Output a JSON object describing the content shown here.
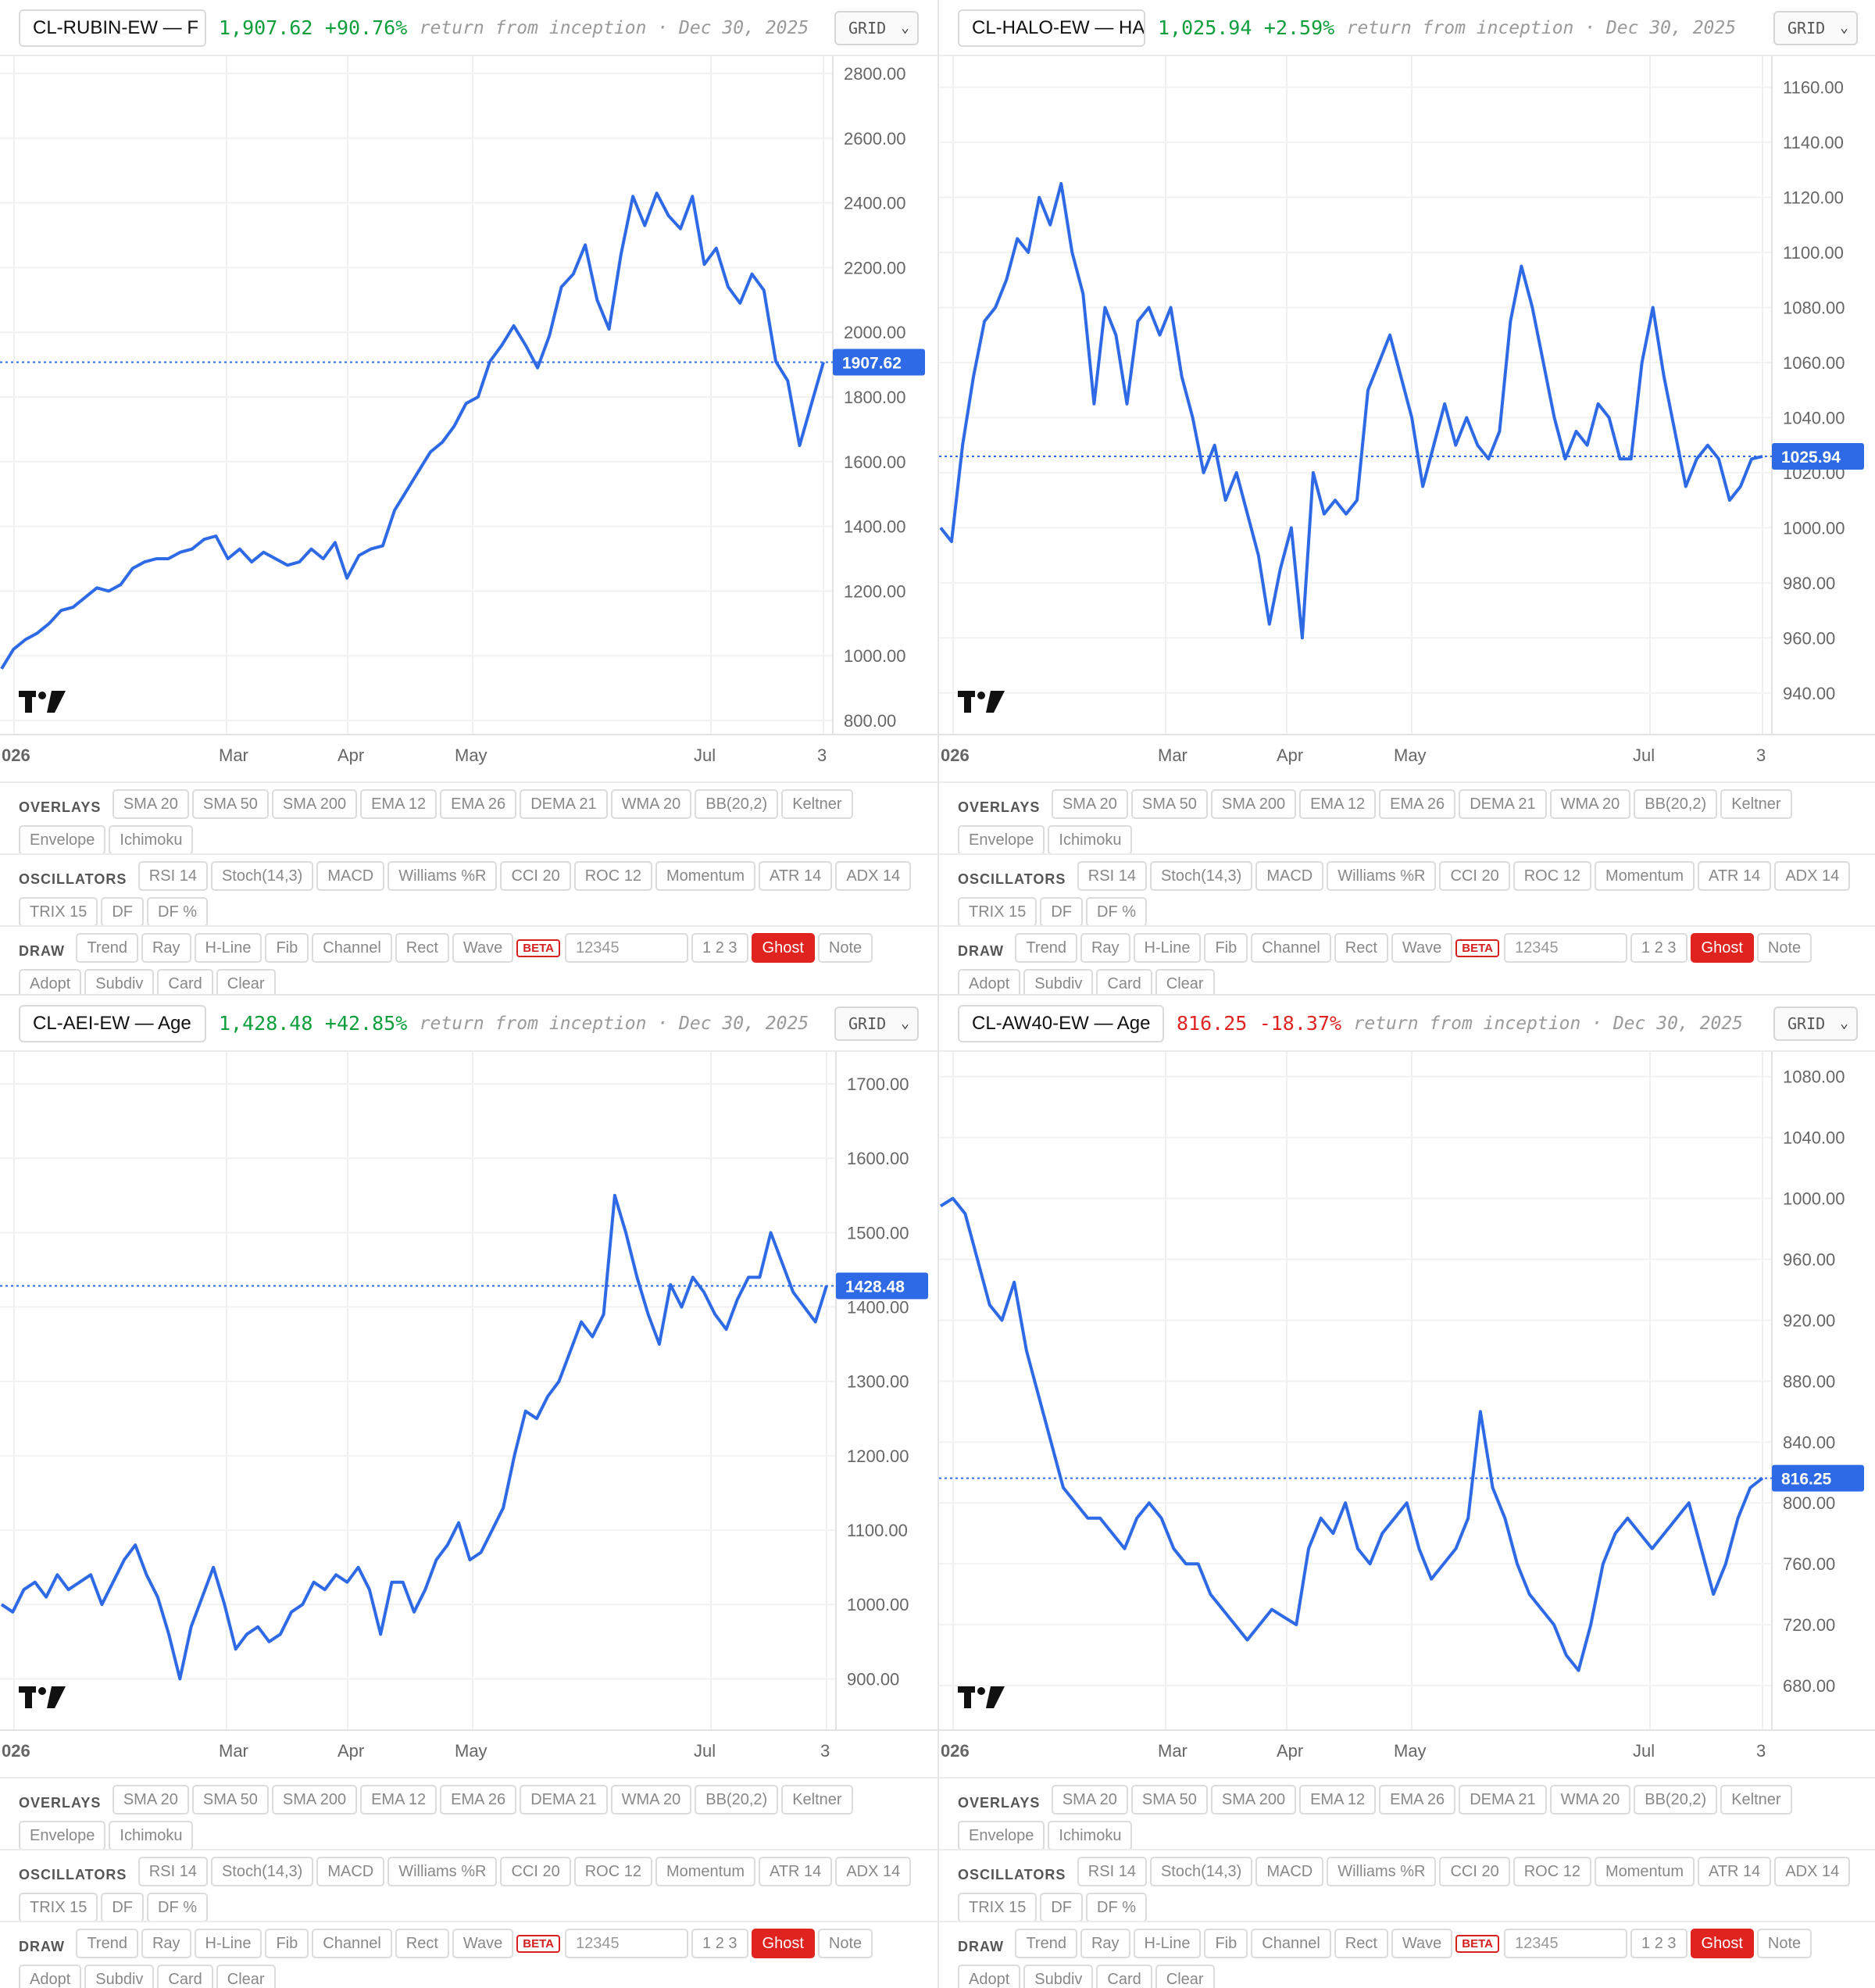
{
  "toolbars": {
    "overlays_label": "OVERLAYS",
    "overlays": [
      "SMA 20",
      "SMA 50",
      "SMA 200",
      "EMA 12",
      "EMA 26",
      "DEMA 21",
      "WMA 20",
      "BB(20,2)",
      "Keltner",
      "Envelope",
      "Ichimoku"
    ],
    "oscillators_label": "OSCILLATORS",
    "oscillators": [
      "RSI 14",
      "Stoch(14,3)",
      "MACD",
      "Williams %R",
      "CCI 20",
      "ROC 12",
      "Momentum",
      "ATR 14",
      "ADX 14",
      "TRIX 15",
      "DF",
      "DF %"
    ],
    "draw_label": "DRAW",
    "draw_before": [
      "Trend",
      "Ray",
      "H-Line",
      "Fib",
      "Channel",
      "Rect",
      "Wave"
    ],
    "beta": "BETA",
    "num_field": "12345",
    "draw_after": [
      "1 2 3",
      "Ghost",
      "Note",
      "Adopt",
      "Subdiv",
      "Card",
      "Clear"
    ],
    "active_draw": "Ghost"
  },
  "colors": {
    "line": "#2f6ae6",
    "positive": "#0e9f3c",
    "negative": "#e02424",
    "badge": "#2f6ae6",
    "active": "#e0231f"
  },
  "logo_icon": "tradingview-logo-icon",
  "panels": [
    {
      "name": "CL-RUBIN-EW — F",
      "value": "1,907.62",
      "change": "+90.76%",
      "change_sign": "positive",
      "subtitle": "return from inception · Dec 30, 2025",
      "mode": "GRID",
      "price_label": "1907.62",
      "chart_data": {
        "type": "line",
        "x_labels": [
          "026",
          "Mar",
          "Apr",
          "May",
          "Jul",
          "3"
        ],
        "y_ticks": [
          "2800.00",
          "2600.00",
          "2400.00",
          "2200.00",
          "2000.00",
          "1800.00",
          "1600.00",
          "1400.00",
          "1200.00",
          "1000.00",
          "800.00"
        ],
        "ylim": [
          800,
          2800
        ],
        "last": 1907.62,
        "values": [
          960,
          1020,
          1050,
          1070,
          1100,
          1140,
          1150,
          1180,
          1210,
          1200,
          1220,
          1270,
          1290,
          1300,
          1300,
          1320,
          1330,
          1360,
          1370,
          1300,
          1330,
          1290,
          1320,
          1300,
          1280,
          1290,
          1330,
          1300,
          1350,
          1240,
          1310,
          1330,
          1340,
          1450,
          1510,
          1570,
          1630,
          1660,
          1710,
          1780,
          1800,
          1910,
          1960,
          2020,
          1960,
          1890,
          1990,
          2140,
          2180,
          2270,
          2100,
          2010,
          2240,
          2420,
          2330,
          2430,
          2360,
          2320,
          2420,
          2210,
          2260,
          2140,
          2090,
          2180,
          2130,
          1910,
          1850,
          1650,
          1780,
          1907.62
        ]
      }
    },
    {
      "name": "CL-HALO-EW — HA",
      "value": "1,025.94",
      "change": "+2.59%",
      "change_sign": "positive",
      "subtitle": "return from inception · Dec 30, 2025",
      "mode": "GRID",
      "price_label": "1025.94",
      "chart_data": {
        "type": "line",
        "x_labels": [
          "026",
          "Mar",
          "Apr",
          "May",
          "Jul",
          "3"
        ],
        "y_ticks": [
          "1160.00",
          "1140.00",
          "1120.00",
          "1100.00",
          "1080.00",
          "1060.00",
          "1040.00",
          "1020.00",
          "1000.00",
          "980.00",
          "960.00",
          "940.00"
        ],
        "ylim": [
          930,
          1165
        ],
        "last": 1025.94,
        "values": [
          1000,
          995,
          1030,
          1055,
          1075,
          1080,
          1090,
          1105,
          1100,
          1120,
          1110,
          1125,
          1100,
          1085,
          1045,
          1080,
          1070,
          1045,
          1075,
          1080,
          1070,
          1080,
          1055,
          1040,
          1020,
          1030,
          1010,
          1020,
          1005,
          990,
          965,
          985,
          1000,
          960,
          1020,
          1005,
          1010,
          1005,
          1010,
          1050,
          1060,
          1070,
          1055,
          1040,
          1015,
          1030,
          1045,
          1030,
          1040,
          1030,
          1025,
          1035,
          1075,
          1095,
          1080,
          1060,
          1040,
          1025,
          1035,
          1030,
          1045,
          1040,
          1025,
          1025,
          1060,
          1080,
          1055,
          1035,
          1015,
          1025,
          1030,
          1025,
          1010,
          1015,
          1025,
          1025.94
        ]
      }
    },
    {
      "name": "CL-AEI-EW — Age",
      "value": "1,428.48",
      "change": "+42.85%",
      "change_sign": "positive",
      "subtitle": "return from inception · Dec 30, 2025",
      "mode": "GRID",
      "price_label": "1428.48",
      "chart_data": {
        "type": "line",
        "x_labels": [
          "026",
          "Mar",
          "Apr",
          "May",
          "Jul",
          "3"
        ],
        "y_ticks": [
          "1700.00",
          "1600.00",
          "1500.00",
          "1400.00",
          "1300.00",
          "1200.00",
          "1100.00",
          "1000.00",
          "900.00"
        ],
        "ylim": [
          850,
          1720
        ],
        "last": 1428.48,
        "values": [
          1000,
          990,
          1020,
          1030,
          1010,
          1040,
          1020,
          1030,
          1040,
          1000,
          1030,
          1060,
          1080,
          1040,
          1010,
          960,
          900,
          970,
          1010,
          1050,
          1000,
          940,
          960,
          970,
          950,
          960,
          990,
          1000,
          1030,
          1020,
          1040,
          1030,
          1050,
          1020,
          960,
          1030,
          1030,
          990,
          1020,
          1060,
          1080,
          1110,
          1060,
          1070,
          1100,
          1130,
          1200,
          1260,
          1250,
          1280,
          1300,
          1340,
          1380,
          1360,
          1390,
          1550,
          1500,
          1440,
          1390,
          1350,
          1430,
          1400,
          1440,
          1420,
          1390,
          1370,
          1410,
          1440,
          1440,
          1500,
          1460,
          1420,
          1400,
          1380,
          1428.48
        ]
      }
    },
    {
      "name": "CL-AW40-EW — Age",
      "value": "816.25",
      "change": "-18.37%",
      "change_sign": "negative",
      "subtitle": "return from inception · Dec 30, 2025",
      "mode": "GRID",
      "price_label": "816.25",
      "chart_data": {
        "type": "line",
        "x_labels": [
          "026",
          "Mar",
          "Apr",
          "May",
          "Jul",
          "3"
        ],
        "y_ticks": [
          "1080.00",
          "1040.00",
          "1000.00",
          "960.00",
          "920.00",
          "880.00",
          "840.00",
          "800.00",
          "760.00",
          "720.00",
          "680.00"
        ],
        "ylim": [
          660,
          1085
        ],
        "last": 816.25,
        "values": [
          995,
          1000,
          990,
          960,
          930,
          920,
          945,
          900,
          870,
          840,
          810,
          800,
          790,
          790,
          780,
          770,
          790,
          800,
          790,
          770,
          760,
          760,
          740,
          730,
          720,
          710,
          720,
          730,
          725,
          720,
          770,
          790,
          780,
          800,
          770,
          760,
          780,
          790,
          800,
          770,
          750,
          760,
          770,
          790,
          860,
          810,
          790,
          760,
          740,
          730,
          720,
          700,
          690,
          720,
          760,
          780,
          790,
          780,
          770,
          780,
          790,
          800,
          770,
          740,
          760,
          790,
          810,
          816.25
        ]
      }
    }
  ]
}
